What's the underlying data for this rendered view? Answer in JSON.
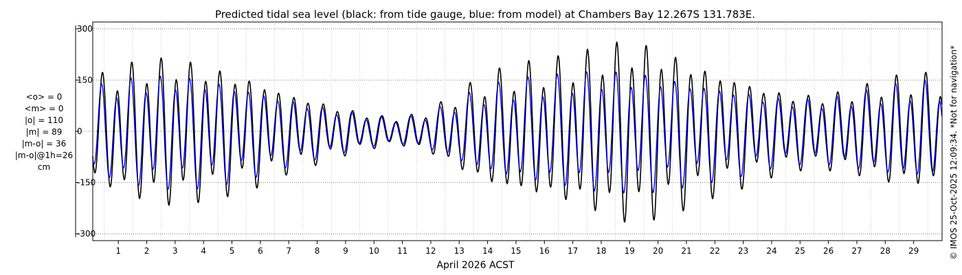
{
  "chart_data": {
    "type": "line",
    "title": "Predicted tidal sea level (black: from tide gauge, blue: from model) at Chambers Bay 12.267S 131.783E.",
    "xlabel": "April 2026 ACST",
    "ylabel": "",
    "unit": "cm",
    "xlim": [
      0.6,
      30.5
    ],
    "ylim": [
      -320,
      320
    ],
    "yticks": [
      -300,
      -150,
      0,
      150,
      300
    ],
    "ytick_labels": [
      "-300",
      "-150",
      "0",
      "150",
      "300"
    ],
    "xticks": [
      1,
      2,
      3,
      4,
      5,
      6,
      7,
      8,
      9,
      10,
      11,
      12,
      13,
      14,
      15,
      16,
      17,
      18,
      19,
      20,
      21,
      22,
      23,
      24,
      25,
      26,
      27,
      28,
      29
    ],
    "xtick_labels": [
      "1",
      "2",
      "3",
      "4",
      "5",
      "6",
      "7",
      "8",
      "9",
      "10",
      "11",
      "12",
      "13",
      "14",
      "15",
      "16",
      "17",
      "18",
      "19",
      "20",
      "21",
      "22",
      "23",
      "24",
      "25",
      "26",
      "27",
      "28",
      "29"
    ],
    "grid": true,
    "stats": [
      "<o> = 0",
      "<m> = 0",
      "|o| = 110",
      "|m| = 89",
      "|m-o| = 36",
      "|m-o|@1h=26",
      "cm"
    ],
    "series": [
      {
        "name": "from tide gauge",
        "color": "#000000",
        "ampl_days": [
          0.6,
          1.4,
          2.4,
          3.4,
          4.4,
          5.4,
          6.4,
          7.4,
          8.4,
          9.4,
          10.4,
          11.4,
          12.4,
          13.4,
          14.4,
          15.4,
          16.4,
          17.4,
          18.4,
          19.4,
          20.4,
          21.4,
          22.4,
          23.4,
          24.4,
          25.4,
          26.4,
          27.4,
          28.4,
          29.4,
          30.5
        ],
        "amplitudes": [
          150,
          180,
          205,
          215,
          200,
          180,
          155,
          120,
          95,
          70,
          50,
          40,
          60,
          110,
          160,
          185,
          200,
          215,
          240,
          265,
          250,
          220,
          185,
          160,
          130,
          110,
          110,
          125,
          150,
          165,
          160
        ]
      },
      {
        "name": "from model",
        "color": "#0000cc",
        "ampl_days": [
          0.6,
          1.4,
          2.4,
          3.4,
          4.4,
          5.4,
          6.4,
          7.4,
          8.4,
          9.4,
          10.4,
          11.4,
          12.4,
          13.4,
          14.4,
          15.4,
          16.4,
          17.4,
          18.4,
          19.4,
          20.4,
          21.4,
          22.4,
          23.4,
          24.4,
          25.4,
          26.4,
          27.4,
          28.4,
          29.4,
          30.5
        ],
        "amplitudes": [
          125,
          145,
          160,
          165,
          160,
          145,
          125,
          100,
          80,
          62,
          45,
          38,
          52,
          90,
          125,
          145,
          155,
          165,
          175,
          175,
          170,
          155,
          140,
          125,
          105,
          95,
          95,
          110,
          125,
          140,
          140
        ]
      }
    ]
  },
  "side_note": "© IMOS 25-Oct-2025 12:09:34. *Not for navigation*"
}
